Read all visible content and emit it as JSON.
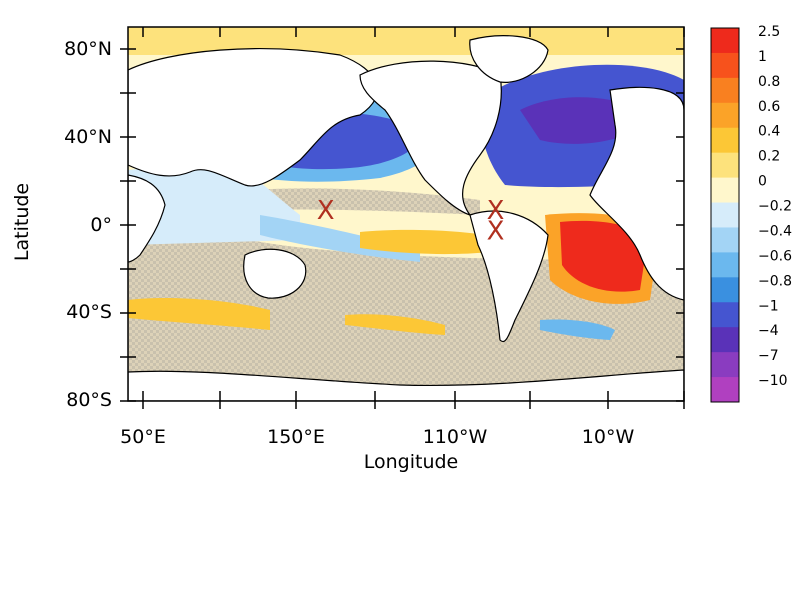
{
  "map": {
    "xlabel": "Longitude",
    "ylabel": "Latitude",
    "lon_ticks": [
      "50°E",
      "150°E",
      "110°W",
      "10°W"
    ],
    "lat_ticks": [
      "80°N",
      "40°N",
      "0°",
      "40°S",
      "80°S"
    ],
    "markers": [
      {
        "symbol": "X",
        "color": "#b03020",
        "lon": 158,
        "lat": 2
      },
      {
        "symbol": "X",
        "color": "#b03020",
        "lon": 268,
        "lat": 2
      },
      {
        "symbol": "X",
        "color": "#b03020",
        "lon": 268,
        "lat": -8
      }
    ]
  },
  "colorbar": {
    "labels": [
      "2.5",
      "1",
      "0.8",
      "0.6",
      "0.4",
      "0.2",
      "0",
      "−0.2",
      "−0.4",
      "−0.6",
      "−0.8",
      "−1",
      "−4",
      "−7",
      "−10"
    ],
    "colors": [
      "#ee2a1c",
      "#f7521c",
      "#f98020",
      "#fba328",
      "#fcc736",
      "#fde27c",
      "#fff7cc",
      "#d6ecfa",
      "#a3d4f5",
      "#6bb8ee",
      "#3a90e0",
      "#4555d0",
      "#5a32b8",
      "#8a3cc0",
      "#b040c0"
    ]
  }
}
